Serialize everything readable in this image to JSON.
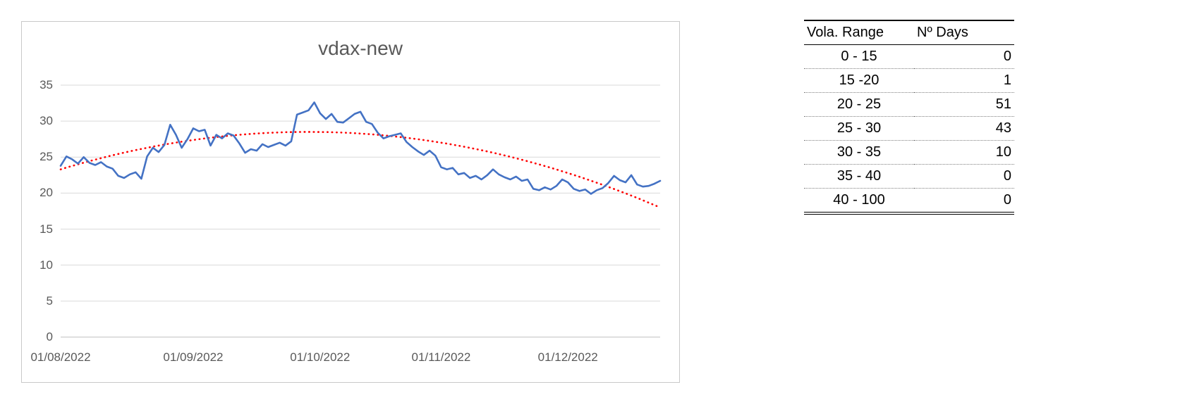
{
  "colors": {
    "series": "#4472C4",
    "trend": "#FF0000",
    "grid": "#D9D9D9",
    "axis": "#BFBFBF",
    "text": "#595959",
    "border": "#C9C9C9"
  },
  "chart_data": {
    "type": "line",
    "title": "vdax-new",
    "xlabel": "",
    "ylabel": "",
    "ylim": [
      0,
      35
    ],
    "grid": true,
    "legend": "none",
    "y_ticks": [
      0,
      5,
      10,
      15,
      20,
      25,
      30,
      35
    ],
    "x_tick_labels": [
      "01/08/2022",
      "01/09/2022",
      "01/10/2022",
      "01/11/2022",
      "01/12/2022"
    ],
    "x_tick_indices": [
      0,
      23,
      45,
      66,
      88
    ],
    "series": [
      {
        "name": "vdax-new",
        "color": "#4472C4",
        "values": [
          23.8,
          25.1,
          24.7,
          24.1,
          25.0,
          24.2,
          23.9,
          24.3,
          23.7,
          23.4,
          22.4,
          22.1,
          22.6,
          22.9,
          22.0,
          25.1,
          26.3,
          25.7,
          26.7,
          29.5,
          28.1,
          26.3,
          27.5,
          29.0,
          28.6,
          28.8,
          26.6,
          28.1,
          27.6,
          28.3,
          28.0,
          26.9,
          25.6,
          26.1,
          25.9,
          26.8,
          26.4,
          26.7,
          27.0,
          26.6,
          27.2,
          30.9,
          31.2,
          31.5,
          32.6,
          31.1,
          30.3,
          31.0,
          29.9,
          29.8,
          30.4,
          31.0,
          31.3,
          29.9,
          29.6,
          28.4,
          27.6,
          27.9,
          28.1,
          28.3,
          27.1,
          26.4,
          25.8,
          25.3,
          25.9,
          25.2,
          23.6,
          23.3,
          23.5,
          22.6,
          22.8,
          22.1,
          22.4,
          21.9,
          22.5,
          23.3,
          22.6,
          22.2,
          21.9,
          22.3,
          21.7,
          21.9,
          20.6,
          20.4,
          20.8,
          20.5,
          21.0,
          21.9,
          21.5,
          20.6,
          20.3,
          20.5,
          19.9,
          20.4,
          20.7,
          21.4,
          22.4,
          21.8,
          21.5,
          22.5,
          21.2,
          20.9,
          21.0,
          21.3,
          21.7
        ]
      }
    ],
    "trendline": {
      "type": "polynomial",
      "order": 2,
      "style": "dotted",
      "color": "#FF0000",
      "poly": {
        "c0": 23.3,
        "c1": 25.2,
        "c2": -30.5
      }
    }
  },
  "table": {
    "headers": [
      "Vola. Range",
      "Nº Days"
    ],
    "rows": [
      {
        "range": "0 - 15",
        "days": "0"
      },
      {
        "range": "15 -20",
        "days": "1"
      },
      {
        "range": "20 - 25",
        "days": "51"
      },
      {
        "range": "25 - 30",
        "days": "43"
      },
      {
        "range": "30 - 35",
        "days": "10"
      },
      {
        "range": "35 - 40",
        "days": "0"
      },
      {
        "range": "40 - 100",
        "days": "0"
      }
    ]
  }
}
